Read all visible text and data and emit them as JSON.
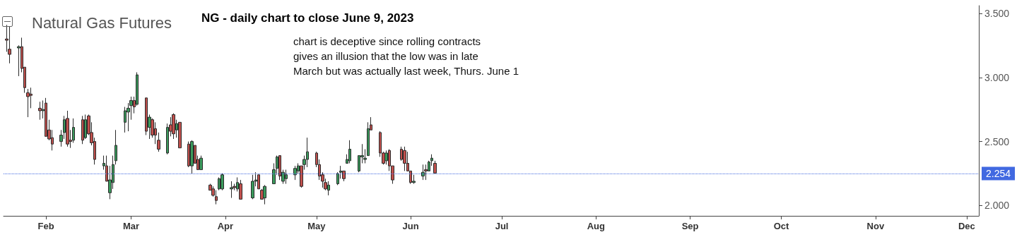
{
  "chart_data": {
    "type": "candlestick",
    "title": "NG - daily chart to close June 9, 2023",
    "subtitle": "Natural Gas Futures",
    "annotations": [
      "chart is deceptive since rolling contracts",
      "gives an illusion that the low was in late",
      "March but was actually last week, Thurs. June 1"
    ],
    "x": [
      "2023-01-19",
      "2023-01-20",
      "2023-01-23",
      "2023-01-24",
      "2023-01-25",
      "2023-01-26",
      "2023-01-27",
      "2023-01-30",
      "2023-01-31",
      "2023-02-01",
      "2023-02-02",
      "2023-02-03",
      "2023-02-06",
      "2023-02-07",
      "2023-02-08",
      "2023-02-09",
      "2023-02-10",
      "2023-02-13",
      "2023-02-14",
      "2023-02-15",
      "2023-02-16",
      "2023-02-17",
      "2023-02-20",
      "2023-02-21",
      "2023-02-22",
      "2023-02-23",
      "2023-02-24",
      "2023-02-27",
      "2023-02-28",
      "2023-03-01",
      "2023-03-02",
      "2023-03-03",
      "2023-03-06",
      "2023-03-07",
      "2023-03-08",
      "2023-03-09",
      "2023-03-10",
      "2023-03-13",
      "2023-03-14",
      "2023-03-15",
      "2023-03-16",
      "2023-03-17",
      "2023-03-20",
      "2023-03-21",
      "2023-03-22",
      "2023-03-23",
      "2023-03-24",
      "2023-03-27",
      "2023-03-28",
      "2023-03-29",
      "2023-03-30",
      "2023-03-31",
      "2023-04-03",
      "2023-04-04",
      "2023-04-05",
      "2023-04-06",
      "2023-04-10",
      "2023-04-11",
      "2023-04-12",
      "2023-04-13",
      "2023-04-14",
      "2023-04-17",
      "2023-04-18",
      "2023-04-19",
      "2023-04-20",
      "2023-04-21",
      "2023-04-24",
      "2023-04-25",
      "2023-04-26",
      "2023-04-27",
      "2023-04-28",
      "2023-05-01",
      "2023-05-02",
      "2023-05-03",
      "2023-05-04",
      "2023-05-05",
      "2023-05-08",
      "2023-05-09",
      "2023-05-10",
      "2023-05-11",
      "2023-05-12",
      "2023-05-15",
      "2023-05-16",
      "2023-05-17",
      "2023-05-18",
      "2023-05-19",
      "2023-05-22",
      "2023-05-23",
      "2023-05-24",
      "2023-05-25",
      "2023-05-26",
      "2023-05-29",
      "2023-05-30",
      "2023-05-31",
      "2023-06-01",
      "2023-06-02",
      "2023-06-05",
      "2023-06-06",
      "2023-06-07",
      "2023-06-08",
      "2023-06-09"
    ],
    "ohlc": [
      [
        3.3,
        3.41,
        3.2,
        3.29
      ],
      [
        3.22,
        3.4,
        3.11,
        3.18
      ],
      [
        3.23,
        3.25,
        3.01,
        3.24
      ],
      [
        3.24,
        3.31,
        3.04,
        3.07
      ],
      [
        3.08,
        3.08,
        2.88,
        2.92
      ],
      [
        2.88,
        2.91,
        2.69,
        2.85
      ],
      [
        2.87,
        2.92,
        2.76,
        2.86
      ],
      [
        2.76,
        2.81,
        2.67,
        2.74
      ],
      [
        2.74,
        2.82,
        2.68,
        2.75
      ],
      [
        2.8,
        2.84,
        2.54,
        2.54
      ],
      [
        2.59,
        2.67,
        2.51,
        2.52
      ],
      [
        2.53,
        2.59,
        2.43,
        2.48
      ],
      [
        2.5,
        2.59,
        2.46,
        2.55
      ],
      [
        2.57,
        2.7,
        2.52,
        2.67
      ],
      [
        2.68,
        2.74,
        2.46,
        2.48
      ],
      [
        2.51,
        2.59,
        2.45,
        2.5
      ],
      [
        2.51,
        2.68,
        2.49,
        2.61
      ],
      [
        2.67,
        2.7,
        2.48,
        2.51
      ],
      [
        2.53,
        2.71,
        2.52,
        2.67
      ],
      [
        2.7,
        2.71,
        2.55,
        2.56
      ],
      [
        2.57,
        2.65,
        2.47,
        2.49
      ],
      [
        2.5,
        2.53,
        2.32,
        2.36
      ],
      [
        2.31,
        2.39,
        2.28,
        2.33
      ],
      [
        2.31,
        2.39,
        2.19,
        2.19
      ],
      [
        2.1,
        2.31,
        2.05,
        2.2
      ],
      [
        2.18,
        2.39,
        2.13,
        2.32
      ],
      [
        2.35,
        2.59,
        2.32,
        2.47
      ],
      [
        2.65,
        2.77,
        2.57,
        2.74
      ],
      [
        2.73,
        2.8,
        2.58,
        2.76
      ],
      [
        2.78,
        2.85,
        2.67,
        2.82
      ],
      [
        2.82,
        2.85,
        2.72,
        2.77
      ],
      [
        2.79,
        3.04,
        2.78,
        3.02
      ],
      [
        2.84,
        2.84,
        2.55,
        2.58
      ],
      [
        2.61,
        2.71,
        2.52,
        2.69
      ],
      [
        2.67,
        2.68,
        2.53,
        2.55
      ],
      [
        2.6,
        2.65,
        2.48,
        2.55
      ],
      [
        2.51,
        2.57,
        2.42,
        2.44
      ],
      [
        2.41,
        2.64,
        2.4,
        2.61
      ],
      [
        2.63,
        2.69,
        2.54,
        2.58
      ],
      [
        2.71,
        2.72,
        2.52,
        2.56
      ],
      [
        2.59,
        2.67,
        2.53,
        2.64
      ],
      [
        2.65,
        2.65,
        2.45,
        2.45
      ],
      [
        2.48,
        2.5,
        2.3,
        2.31
      ],
      [
        2.31,
        2.51,
        2.25,
        2.5
      ],
      [
        2.47,
        2.47,
        2.33,
        2.33
      ],
      [
        2.36,
        2.39,
        2.28,
        2.28
      ],
      [
        2.28,
        2.39,
        2.28,
        2.37
      ],
      [
        2.16,
        2.17,
        2.12,
        2.12
      ],
      [
        2.13,
        2.15,
        2.07,
        2.08
      ],
      [
        2.07,
        2.12,
        2.01,
        2.04
      ],
      [
        2.13,
        2.22,
        2.12,
        2.21
      ],
      [
        2.13,
        2.25,
        2.12,
        2.24
      ],
      [
        2.13,
        2.19,
        2.06,
        2.14
      ],
      [
        2.15,
        2.17,
        2.12,
        2.14
      ],
      [
        2.13,
        2.22,
        2.11,
        2.18
      ],
      [
        2.17,
        2.2,
        2.05,
        2.05
      ],
      [
        2.06,
        2.24,
        2.05,
        2.19
      ],
      [
        2.19,
        2.26,
        2.15,
        2.2
      ],
      [
        2.24,
        2.24,
        2.13,
        2.13
      ],
      [
        2.12,
        2.13,
        2.05,
        2.05
      ],
      [
        2.06,
        2.16,
        2.01,
        2.15
      ],
      [
        2.17,
        2.33,
        2.17,
        2.28
      ],
      [
        2.29,
        2.39,
        2.24,
        2.38
      ],
      [
        2.39,
        2.39,
        2.2,
        2.23
      ],
      [
        2.19,
        2.28,
        2.17,
        2.26
      ],
      [
        2.21,
        2.28,
        2.17,
        2.24
      ],
      [
        2.24,
        2.31,
        2.2,
        2.29
      ],
      [
        2.27,
        2.33,
        2.25,
        2.31
      ],
      [
        2.31,
        2.31,
        2.14,
        2.15
      ],
      [
        2.32,
        2.39,
        2.28,
        2.36
      ],
      [
        2.36,
        2.53,
        2.3,
        2.42
      ],
      [
        2.41,
        2.42,
        2.3,
        2.32
      ],
      [
        2.32,
        2.36,
        2.2,
        2.23
      ],
      [
        2.24,
        2.26,
        2.14,
        2.19
      ],
      [
        2.18,
        2.21,
        2.12,
        2.13
      ],
      [
        2.12,
        2.19,
        2.08,
        2.16
      ],
      [
        2.17,
        2.26,
        2.16,
        2.25
      ],
      [
        2.26,
        2.31,
        2.21,
        2.27
      ],
      [
        2.27,
        2.27,
        2.19,
        2.21
      ],
      [
        2.33,
        2.4,
        2.33,
        2.36
      ],
      [
        2.35,
        2.51,
        2.33,
        2.44
      ],
      [
        2.27,
        2.39,
        2.26,
        2.39
      ],
      [
        2.38,
        2.48,
        2.33,
        2.39
      ],
      [
        2.36,
        2.44,
        2.33,
        2.37
      ],
      [
        2.39,
        2.65,
        2.39,
        2.6
      ],
      [
        2.63,
        2.69,
        2.59,
        2.59
      ],
      [
        2.57,
        2.58,
        2.38,
        2.41
      ],
      [
        2.41,
        2.42,
        2.32,
        2.33
      ],
      [
        2.35,
        2.43,
        2.32,
        2.41
      ],
      [
        2.43,
        2.44,
        2.27,
        2.31
      ],
      [
        2.31,
        2.31,
        2.17,
        2.2
      ],
      [
        2.44,
        2.46,
        2.35,
        2.36
      ],
      [
        2.43,
        2.46,
        2.27,
        2.33
      ],
      [
        2.33,
        2.42,
        2.27,
        2.27
      ],
      [
        2.27,
        2.27,
        2.17,
        2.18
      ],
      [
        2.18,
        2.24,
        2.17,
        2.19
      ],
      [
        2.23,
        2.32,
        2.2,
        2.26
      ],
      [
        2.28,
        2.32,
        2.2,
        2.27
      ],
      [
        2.27,
        2.35,
        2.27,
        2.34
      ],
      [
        2.35,
        2.4,
        2.31,
        2.37
      ],
      [
        2.33,
        2.35,
        2.25,
        2.254
      ]
    ],
    "colors": [
      "#c0504d",
      "#c0504d",
      "#3a9a5c",
      "#c0504d",
      "#c0504d",
      "#c0504d",
      "#c0504d",
      "#c0504d",
      "#3a9a5c",
      "#c0504d",
      "#c0504d",
      "#c0504d",
      "#3a9a5c",
      "#3a9a5c",
      "#c0504d",
      "#c0504d",
      "#3a9a5c",
      "#c0504d",
      "#3a9a5c",
      "#c0504d",
      "#c0504d",
      "#c0504d",
      "#3a9a5c",
      "#c0504d",
      "#3a9a5c",
      "#3a9a5c",
      "#3a9a5c",
      "#3a9a5c",
      "#3a9a5c",
      "#3a9a5c",
      "#c0504d",
      "#3a9a5c",
      "#c0504d",
      "#3a9a5c",
      "#c0504d",
      "#c0504d",
      "#c0504d",
      "#3a9a5c",
      "#c0504d",
      "#c0504d",
      "#3a9a5c",
      "#c0504d",
      "#c0504d",
      "#3a9a5c",
      "#c0504d",
      "#c0504d",
      "#3a9a5c",
      "#c0504d",
      "#c0504d",
      "#c0504d",
      "#3a9a5c",
      "#3a9a5c",
      "#3a9a5c",
      "#c0504d",
      "#3a9a5c",
      "#c0504d",
      "#3a9a5c",
      "#3a9a5c",
      "#c0504d",
      "#c0504d",
      "#3a9a5c",
      "#3a9a5c",
      "#3a9a5c",
      "#c0504d",
      "#3a9a5c",
      "#3a9a5c",
      "#3a9a5c",
      "#3a9a5c",
      "#c0504d",
      "#3a9a5c",
      "#3a9a5c",
      "#c0504d",
      "#c0504d",
      "#c0504d",
      "#c0504d",
      "#3a9a5c",
      "#3a9a5c",
      "#3a9a5c",
      "#c0504d",
      "#3a9a5c",
      "#3a9a5c",
      "#3a9a5c",
      "#3a9a5c",
      "#3a9a5c",
      "#3a9a5c",
      "#c0504d",
      "#c0504d",
      "#c0504d",
      "#3a9a5c",
      "#c0504d",
      "#c0504d",
      "#c0504d",
      "#c0504d",
      "#c0504d",
      "#c0504d",
      "#3a9a5c",
      "#3a9a5c",
      "#c0504d",
      "#3a9a5c",
      "#3a9a5c",
      "#c0504d"
    ],
    "xlim": [
      "2023-01-18",
      "2023-12-05"
    ],
    "xticks": [
      {
        "value": "2023-02-01",
        "label": "Feb"
      },
      {
        "value": "2023-03-01",
        "label": "Mar"
      },
      {
        "value": "2023-04-01",
        "label": "Apr"
      },
      {
        "value": "2023-05-01",
        "label": "May"
      },
      {
        "value": "2023-06-01",
        "label": "Jun"
      },
      {
        "value": "2023-07-01",
        "label": "Jul"
      },
      {
        "value": "2023-08-01",
        "label": "Aug"
      },
      {
        "value": "2023-09-01",
        "label": "Sep"
      },
      {
        "value": "2023-10-01",
        "label": "Oct"
      },
      {
        "value": "2023-11-01",
        "label": "Nov"
      },
      {
        "value": "2023-12-01",
        "label": "Dec"
      }
    ],
    "ylim": [
      1.92,
      3.56
    ],
    "yticks": [
      {
        "value": 2,
        "label": "2.000"
      },
      {
        "value": 2.5,
        "label": "2.500"
      },
      {
        "value": 3,
        "label": "3.000"
      },
      {
        "value": 3.5,
        "label": "3.500"
      }
    ],
    "ref_lines": [
      {
        "axis": "y",
        "value": 2.254,
        "label": "2.254",
        "color": "#4169e1",
        "line_style": "dotted"
      }
    ]
  }
}
